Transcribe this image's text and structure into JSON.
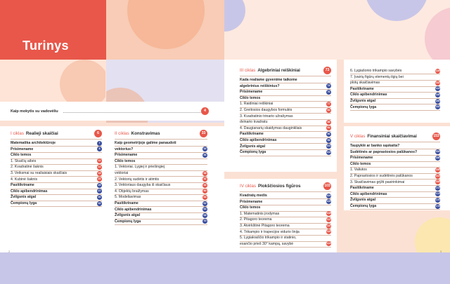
{
  "title": "Turinys",
  "colors": {
    "accent": "#e8574a",
    "blue": "#3b4fa0",
    "lilac": "#c8c6e8",
    "peach": "#f6c3a9",
    "cream": "#fbe1d4"
  },
  "intro": {
    "label": "Kaip mokytis su vadovėliu",
    "page": "4"
  },
  "page_numbers": {
    "left": "2",
    "right": "3"
  },
  "chapters": {
    "c1": {
      "tag": "I ciklas",
      "name": "Realieji skaičiai",
      "page": "6",
      "items": [
        {
          "t": "Matematika architektūroje",
          "p": "7",
          "b": true
        },
        {
          "t": "Prisimename",
          "p": "8",
          "b": true
        },
        {
          "t": "Ciklo temos",
          "p": "",
          "b": true
        },
        {
          "t": "1.  Skaičių aibės",
          "p": "11",
          "b": false
        },
        {
          "t": "2.  Kvadratinė šaknis",
          "p": "14",
          "b": false
        },
        {
          "t": "3.  Veiksmai su realiaisiais skaičiais",
          "p": "18",
          "b": false
        },
        {
          "t": "4.  Kubinė šaknis",
          "p": "22",
          "b": false
        },
        {
          "t": "Pasitikriname",
          "p": "25",
          "b": true
        },
        {
          "t": "Ciklo apibendrinimas",
          "p": "27",
          "b": true
        },
        {
          "t": "Žvilgsnis atgal",
          "p": "30",
          "b": true
        },
        {
          "t": "Čempionų lyga",
          "p": "32",
          "b": true
        }
      ]
    },
    "c2": {
      "tag": "II ciklas",
      "name": "Konstravimas",
      "page": "33",
      "items": [
        {
          "t": "Kaip geometrijoje galime panaudoti",
          "p": "",
          "b": true
        },
        {
          "t": "vektorius?",
          "p": "34",
          "b": true
        },
        {
          "t": "Prisimename",
          "p": "36",
          "b": true
        },
        {
          "t": "Ciklo temos",
          "p": "",
          "b": true
        },
        {
          "t": "1.  Vektoriai. Lygiej ir priešingiej",
          "p": "",
          "b": false
        },
        {
          "t": "     vektoriai",
          "p": "38",
          "b": false
        },
        {
          "t": "2.  Vektorių sudėtis ir atimtis",
          "p": "42",
          "b": false
        },
        {
          "t": "3.  Vektoriaus daugyba iš skaičiaus",
          "p": "46",
          "b": false
        },
        {
          "t": "4.  Objektų braižymas",
          "p": "50",
          "b": false
        },
        {
          "t": "5.  Modeliavimas",
          "p": "54",
          "b": false
        },
        {
          "t": "Pasitikriname",
          "p": "62",
          "b": true
        },
        {
          "t": "Ciklo apibendrinimas",
          "p": "64",
          "b": true
        },
        {
          "t": "Žvilgsnis atgal",
          "p": "68",
          "b": true
        },
        {
          "t": "Čempionų lyga",
          "p": "70",
          "b": true
        }
      ]
    },
    "c3": {
      "tag": "III ciklas",
      "name": "Algebriniai reiškiniai",
      "page": "73",
      "items": [
        {
          "t": "Kada realiame gyvenime taikome",
          "p": "",
          "b": true
        },
        {
          "t": "algebrinius reiškinius?",
          "p": "74",
          "b": true
        },
        {
          "t": "Prisimename",
          "p": "76",
          "b": true
        },
        {
          "t": "Ciklo temos",
          "p": "",
          "b": true
        },
        {
          "t": "1.  Raidiniai reiškiniai",
          "p": "77",
          "b": false
        },
        {
          "t": "2.  Greitosios daugybos formulės",
          "p": "84",
          "b": false
        },
        {
          "t": "3.  Kvadratinio trinario užrašymas",
          "p": "",
          "b": false
        },
        {
          "t": "     dvinario kvadratu",
          "p": "88",
          "b": false
        },
        {
          "t": "4.  Daugianarių skaidymas dauginkliais",
          "p": "91",
          "b": false
        },
        {
          "t": "Pasitikriname",
          "p": "96",
          "b": true
        },
        {
          "t": "Ciklo apibendrinimas",
          "p": "98",
          "b": true
        },
        {
          "t": "Žvilgsnis atgal",
          "p": "101",
          "b": true
        },
        {
          "t": "Čempionų lyga",
          "p": "102",
          "b": true
        }
      ]
    },
    "c4": {
      "tag": "IV ciklas",
      "name": "Plokščiosios figūros",
      "page": "103",
      "items": [
        {
          "t": "Kvadratų medis",
          "p": "104",
          "b": true
        },
        {
          "t": "Prisimename",
          "p": "105",
          "b": true
        },
        {
          "t": "Ciklo temos",
          "p": "",
          "b": true
        },
        {
          "t": "1.  Matematinis įrodymas",
          "p": "108",
          "b": false
        },
        {
          "t": "2.  Pitagoro teorema",
          "p": "112",
          "b": false
        },
        {
          "t": "3.  Atvirkštinė Pitagoro teorema",
          "p": "116",
          "b": false
        },
        {
          "t": "4.  Trikampio ir trapecijos vidurio linija",
          "p": "119",
          "b": false
        },
        {
          "t": "5.  Lygiakraščio trikampio ir statinio,",
          "p": "",
          "b": false
        },
        {
          "t": "     esančio prieš 30° kampą, savybė",
          "p": "124",
          "b": false
        }
      ]
    },
    "c4b": {
      "items": [
        {
          "t": "6.  Lygiašonio trikampio savybės",
          "p": "128",
          "b": false
        },
        {
          "t": "7.  Įvairių figūrų elementų ilgių bei",
          "p": "",
          "b": false
        },
        {
          "t": "     plotų skaičiavimas",
          "p": "132",
          "b": false
        },
        {
          "t": "Pasitikriname",
          "p": "144",
          "b": true
        },
        {
          "t": "Ciklo apibendrinimas",
          "p": "146",
          "b": true
        },
        {
          "t": "Žvilgsnis atgal",
          "p": "150",
          "b": true
        },
        {
          "t": "Čempionų lyga",
          "p": "152",
          "b": true
        }
      ]
    },
    "c5": {
      "tag": "V ciklas",
      "name": "Finansiniai skaičiavimai",
      "page": "153",
      "items": [
        {
          "t": "Taupyklė ar banko sąskaita?",
          "p": "",
          "b": true
        },
        {
          "t": "Sudėtinės ar paprastosios palūkanos?",
          "p": "154",
          "b": true
        },
        {
          "t": "Prisimename",
          "p": "156",
          "b": true
        },
        {
          "t": "Ciklo temos",
          "p": "",
          "b": true
        },
        {
          "t": "1.  Valiutos",
          "p": "158",
          "b": false
        },
        {
          "t": "2.  Paprastosios ir sudėtinės palūkanos",
          "p": "163",
          "b": false
        },
        {
          "t": "3.  Skaičiavimas grįžti pasirinkimai",
          "p": "168",
          "b": false
        },
        {
          "t": "Pasitikriname",
          "p": "172",
          "b": true
        },
        {
          "t": "Ciklo apibendrinimas",
          "p": "174",
          "b": true
        },
        {
          "t": "Žvilgsnis atgal",
          "p": "176",
          "b": true
        },
        {
          "t": "Čempionų lyga",
          "p": "178",
          "b": true
        }
      ]
    }
  }
}
